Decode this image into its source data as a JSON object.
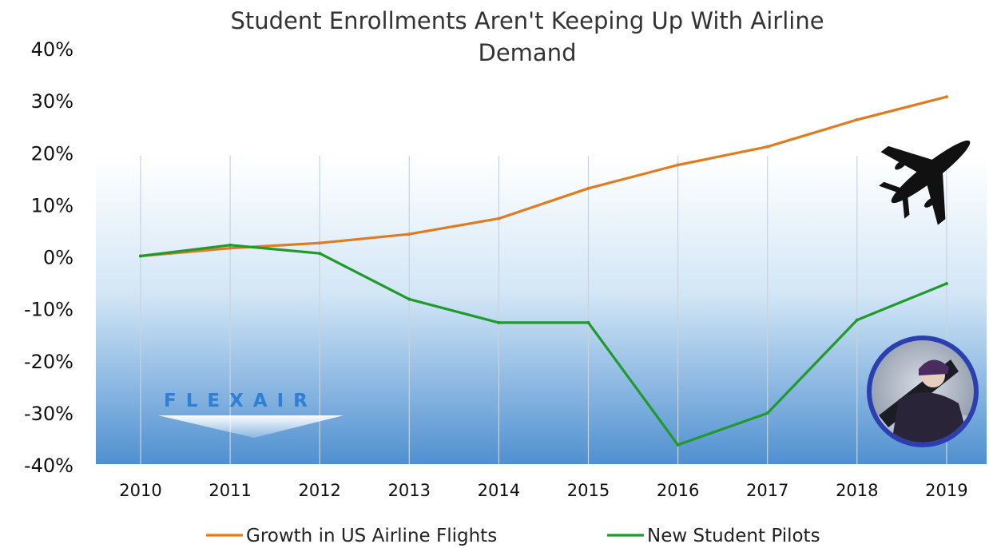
{
  "chart_data": {
    "type": "line",
    "title_line1": "Student Enrollments Aren't Keeping Up With Airline",
    "title_line2": "Demand",
    "xlabel": "",
    "ylabel": "",
    "categories": [
      "2010",
      "2011",
      "2012",
      "2013",
      "2014",
      "2015",
      "2016",
      "2017",
      "2018",
      "2019"
    ],
    "y_ticks": [
      "40%",
      "30%",
      "20%",
      "10%",
      "0%",
      "-10%",
      "-20%",
      "-30%",
      "-40%"
    ],
    "ylim": [
      -40,
      40
    ],
    "grid": "vertical",
    "legend_position": "bottom",
    "series": [
      {
        "name": "Growth in US Airline Flights",
        "color": "#e07b20",
        "values": [
          0,
          1.5,
          2.5,
          4.2,
          7.2,
          13,
          17.5,
          21,
          26.2,
          30.6
        ]
      },
      {
        "name": "New Student Pilots",
        "color": "#1f9a2b",
        "values": [
          0,
          2.1,
          0.5,
          -8.3,
          -12.8,
          -12.8,
          -36.3,
          -30.2,
          -12.3,
          -5.3
        ]
      }
    ]
  },
  "logo": {
    "text": "FLEXAIR"
  },
  "icons": {
    "airplane": "airplane-icon",
    "photo": "pilot-photo"
  }
}
